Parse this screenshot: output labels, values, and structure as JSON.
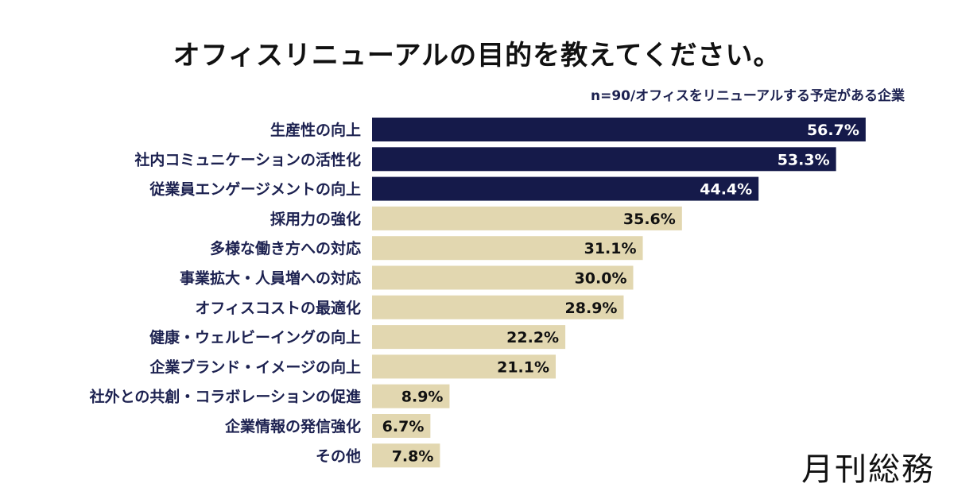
{
  "title": "オフィスリニューアルの目的を教えてください。",
  "note": "n=90/オフィスをリニューアルする予定がある企業",
  "logo": "月刊総務",
  "colors": {
    "highlight": "#151a4a",
    "normal": "#e2d7b0",
    "highlight_text": "#ffffff",
    "normal_text": "#111111",
    "label_text": "#1c2150"
  },
  "chart_data": {
    "type": "bar",
    "orientation": "horizontal",
    "title": "オフィスリニューアルの目的を教えてください。",
    "subtitle": "n=90/オフィスをリニューアルする予定がある企業",
    "categories": [
      "生産性の向上",
      "社内コミュニケーションの活性化",
      "従業員エンゲージメントの向上",
      "採用力の強化",
      "多様な働き方への対応",
      "事業拡大・人員増への対応",
      "オフィスコストの最適化",
      "健康・ウェルビーイングの向上",
      "企業ブランド・イメージの向上",
      "社外との共創・コラボレーションの促進",
      "企業情報の発信強化",
      "その他"
    ],
    "values": [
      56.7,
      53.3,
      44.4,
      35.6,
      31.1,
      30.0,
      28.9,
      22.2,
      21.1,
      8.9,
      6.7,
      7.8
    ],
    "value_labels": [
      "56.7%",
      "53.3%",
      "44.4%",
      "35.6%",
      "31.1%",
      "30.0%",
      "28.9%",
      "22.2%",
      "21.1%",
      "8.9%",
      "6.7%",
      "7.8%"
    ],
    "highlighted_top": 3,
    "xlim": [
      0,
      60
    ],
    "grid": false,
    "legend": "none"
  }
}
